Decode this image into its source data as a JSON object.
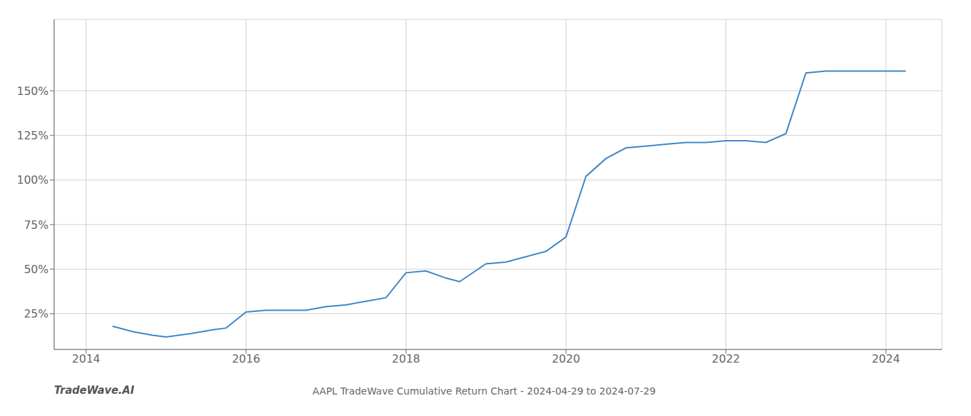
{
  "chart_data": {
    "type": "line",
    "title": "AAPL TradeWave Cumulative Return Chart - 2024-04-29 to 2024-07-29",
    "annotations": [
      "TradeWave.AI"
    ],
    "color": "#3a86c8",
    "grid": true,
    "x": [
      2014.33,
      2014.58,
      2014.83,
      2015.0,
      2015.33,
      2015.58,
      2015.75,
      2016.0,
      2016.25,
      2016.5,
      2016.75,
      2017.0,
      2017.25,
      2017.5,
      2017.75,
      2018.0,
      2018.25,
      2018.5,
      2018.67,
      2019.0,
      2019.25,
      2019.5,
      2019.75,
      2020.0,
      2020.25,
      2020.5,
      2020.75,
      2021.0,
      2021.25,
      2021.5,
      2021.75,
      2022.0,
      2022.25,
      2022.5,
      2022.75,
      2023.0,
      2023.25,
      2023.5,
      2023.75,
      2024.0,
      2024.25
    ],
    "values": [
      18,
      15,
      13,
      12,
      14,
      16,
      17,
      26,
      27,
      27,
      27,
      29,
      30,
      32,
      34,
      48,
      49,
      45,
      43,
      53,
      54,
      57,
      60,
      68,
      102,
      112,
      118,
      119,
      120,
      121,
      121,
      122,
      122,
      121,
      126,
      160,
      161,
      161,
      161,
      161,
      161
    ],
    "xlim": [
      2013.6,
      2024.7
    ],
    "xticks": [
      2014,
      2016,
      2018,
      2020,
      2022,
      2024
    ],
    "ylim": [
      5,
      190
    ],
    "yticks": [
      {
        "value": 25,
        "label": "25%"
      },
      {
        "value": 50,
        "label": "50%"
      },
      {
        "value": 75,
        "label": "75%"
      },
      {
        "value": 100,
        "label": "100%"
      },
      {
        "value": 125,
        "label": "125%"
      },
      {
        "value": 150,
        "label": "150%"
      }
    ]
  }
}
